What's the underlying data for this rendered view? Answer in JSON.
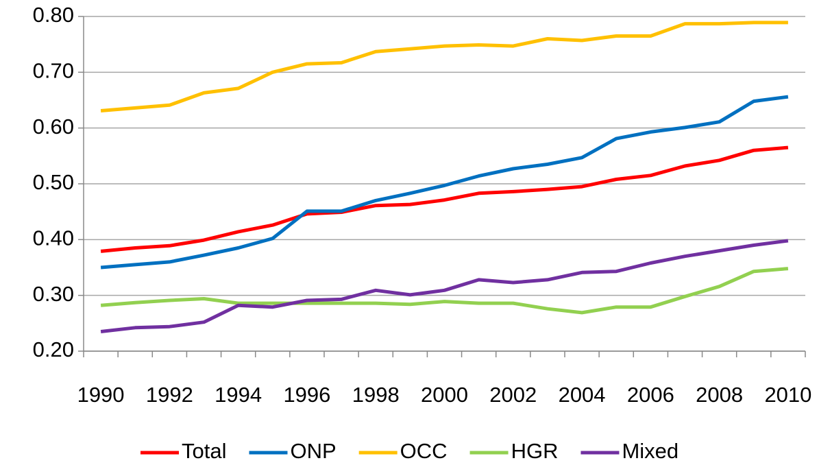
{
  "chart_data": {
    "type": "line",
    "categories": [
      "1990",
      null,
      "1992",
      null,
      "1994",
      null,
      "1996",
      null,
      "1998",
      null,
      "2000",
      null,
      "2002",
      null,
      "2004",
      null,
      "2006",
      null,
      "2008",
      null,
      "2010"
    ],
    "series": [
      {
        "name": "Total",
        "color": "#ff0000",
        "values": [
          0.379,
          0.385,
          0.389,
          0.399,
          0.414,
          0.426,
          0.446,
          0.449,
          0.461,
          0.463,
          0.471,
          0.483,
          0.486,
          0.49,
          0.495,
          0.508,
          0.515,
          0.532,
          0.542,
          0.56,
          0.565
        ]
      },
      {
        "name": "ONP",
        "color": "#0070c0",
        "values": [
          0.35,
          0.355,
          0.36,
          0.372,
          0.385,
          0.402,
          0.451,
          0.451,
          0.47,
          0.483,
          0.497,
          0.514,
          0.527,
          0.535,
          0.547,
          0.581,
          0.593,
          0.601,
          0.611,
          0.648,
          0.656
        ]
      },
      {
        "name": "OCC",
        "color": "#ffc000",
        "values": [
          0.631,
          0.636,
          0.641,
          0.663,
          0.671,
          0.7,
          0.715,
          0.717,
          0.737,
          0.742,
          0.747,
          0.749,
          0.747,
          0.76,
          0.757,
          0.765,
          0.765,
          0.787,
          0.787,
          0.789,
          0.789
        ]
      },
      {
        "name": "HGR",
        "color": "#92d050",
        "values": [
          0.282,
          0.287,
          0.291,
          0.294,
          0.286,
          0.286,
          0.286,
          0.286,
          0.286,
          0.284,
          0.289,
          0.286,
          0.286,
          0.276,
          0.269,
          0.279,
          0.279,
          0.298,
          0.316,
          0.343,
          0.348
        ]
      },
      {
        "name": "Mixed",
        "color": "#7030a0",
        "values": [
          0.235,
          0.242,
          0.244,
          0.252,
          0.282,
          0.279,
          0.291,
          0.293,
          0.309,
          0.301,
          0.309,
          0.328,
          0.323,
          0.328,
          0.341,
          0.343,
          0.358,
          0.37,
          0.38,
          0.39,
          0.398
        ]
      }
    ],
    "ylim": [
      0.2,
      0.8
    ],
    "yticks": [
      {
        "value": 0.2,
        "label": "0.20"
      },
      {
        "value": 0.3,
        "label": "0.30"
      },
      {
        "value": 0.4,
        "label": "0.40"
      },
      {
        "value": 0.5,
        "label": "0.50"
      },
      {
        "value": 0.6,
        "label": "0.60"
      },
      {
        "value": 0.7,
        "label": "0.70"
      },
      {
        "value": 0.8,
        "label": "0.80"
      }
    ],
    "grid": true,
    "legend": "bottom"
  }
}
